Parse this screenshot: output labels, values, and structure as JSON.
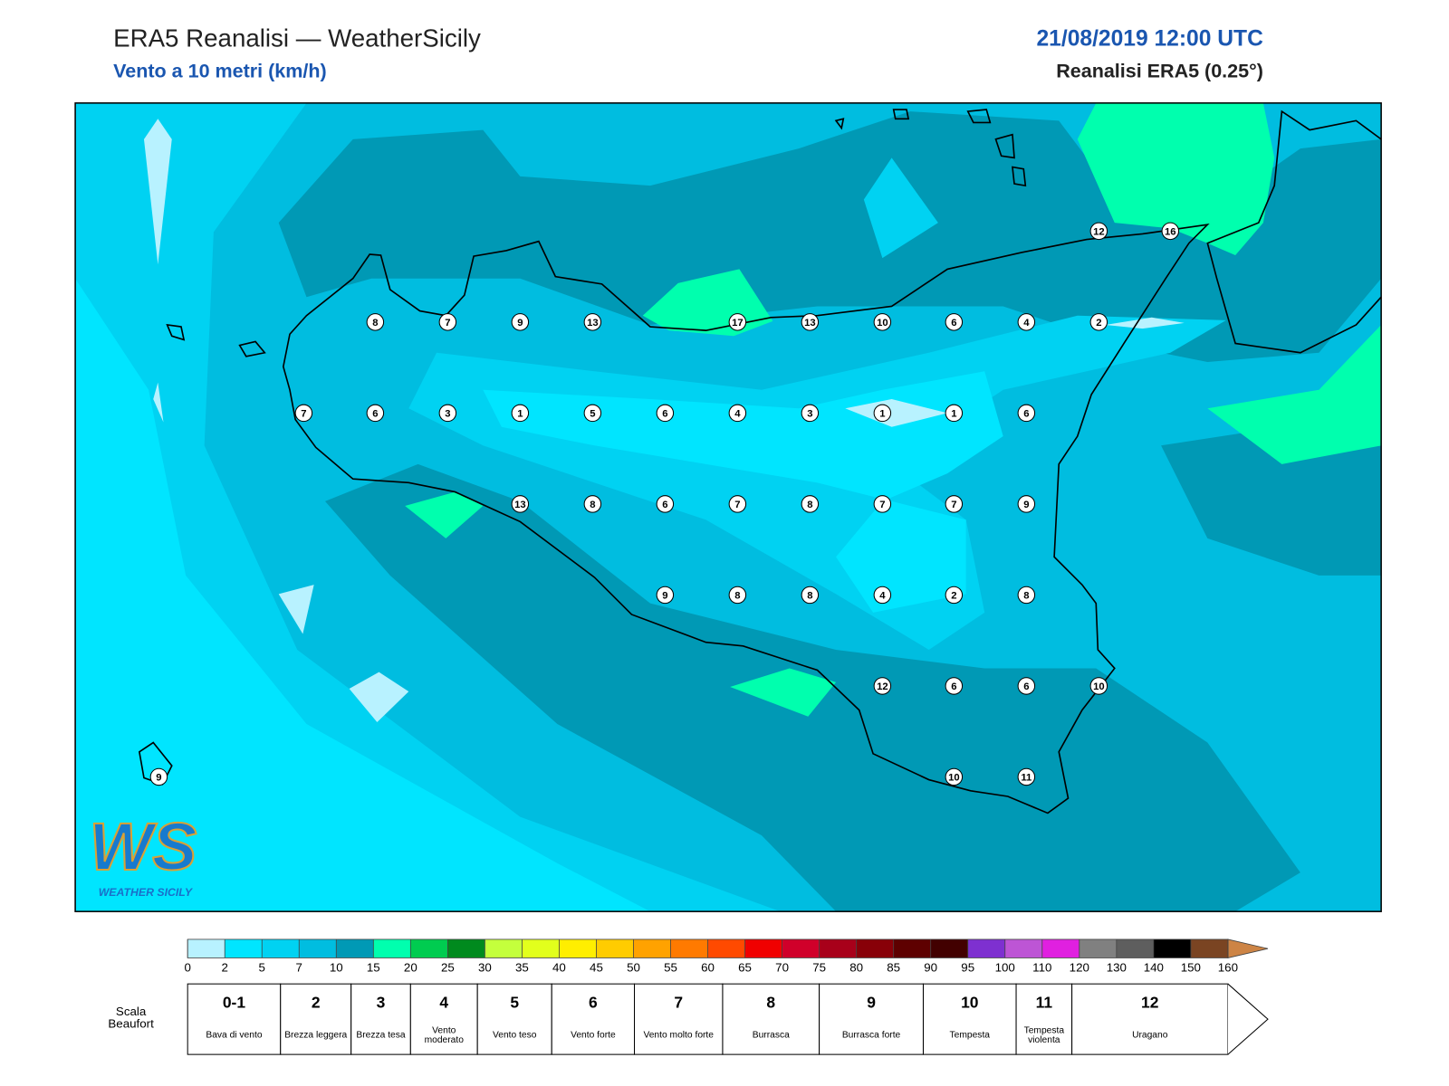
{
  "header": {
    "title": "ERA5 Reanalisi — WeatherSicily",
    "subtitle": "Vento a 10 metri (km/h)",
    "datetime": "21/08/2019 12:00 UTC",
    "product": "Reanalisi ERA5 (0.25°)"
  },
  "map": {
    "stations": [
      12,
      16,
      8,
      7,
      9,
      13,
      17,
      13,
      10,
      6,
      4,
      2,
      7,
      6,
      3,
      1,
      5,
      6,
      4,
      3,
      1,
      1,
      6,
      13,
      8,
      6,
      7,
      8,
      7,
      7,
      9,
      9,
      8,
      8,
      4,
      2,
      8,
      12,
      6,
      6,
      10,
      10,
      11,
      9
    ]
  },
  "logo": {
    "mark": "WS",
    "name": "WEATHER SICILY"
  },
  "colorbar": {
    "ticks": [
      0,
      2,
      5,
      7,
      10,
      15,
      20,
      25,
      30,
      35,
      40,
      45,
      50,
      55,
      60,
      65,
      70,
      75,
      80,
      85,
      90,
      95,
      100,
      110,
      120,
      130,
      140,
      150,
      160
    ],
    "colors": [
      "#b8f2ff",
      "#00e5ff",
      "#00d2f2",
      "#00bde0",
      "#0099b5",
      "#00ffae",
      "#00cc50",
      "#008a1e",
      "#c4ff3c",
      "#e2ff1c",
      "#ffee00",
      "#ffcc00",
      "#ffa200",
      "#ff7a00",
      "#ff4a00",
      "#f00000",
      "#d0002a",
      "#a8001a",
      "#880008",
      "#5e0000",
      "#420000",
      "#7e30d0",
      "#bd55d5",
      "#e020e0",
      "#808080",
      "#5e5e5e",
      "#000000",
      "#7a4422",
      "#cd8445"
    ]
  },
  "beaufort": {
    "label": "Scala Beaufort",
    "levels": [
      {
        "force": "0-1",
        "description": "Bava di vento"
      },
      {
        "force": 2,
        "description": "Brezza leggera"
      },
      {
        "force": 3,
        "description": "Brezza tesa"
      },
      {
        "force": 4,
        "description": "Vento moderato"
      },
      {
        "force": 5,
        "description": "Vento teso"
      },
      {
        "force": 6,
        "description": "Vento forte"
      },
      {
        "force": 7,
        "description": "Vento molto forte"
      },
      {
        "force": 8,
        "description": "Burrasca"
      },
      {
        "force": 9,
        "description": "Burrasca forte"
      },
      {
        "force": 10,
        "description": "Tempesta"
      },
      {
        "force": 11,
        "description": "Tempesta violenta"
      },
      {
        "force": 12,
        "description": "Uragano"
      }
    ]
  }
}
